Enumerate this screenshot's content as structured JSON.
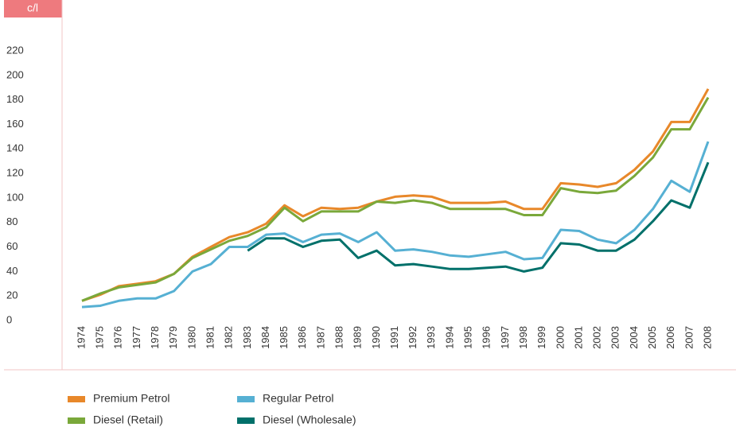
{
  "chart_data": {
    "type": "line",
    "y_label": "c/l",
    "categories": [
      "1974",
      "1975",
      "1976",
      "1977",
      "1978",
      "1979",
      "1980",
      "1981",
      "1982",
      "1983",
      "1984",
      "1985",
      "1986",
      "1987",
      "1988",
      "1989",
      "1990",
      "1991",
      "1992",
      "1993",
      "1994",
      "1995",
      "1996",
      "1997",
      "1998",
      "1999",
      "2000",
      "2001",
      "2002",
      "2003",
      "2004",
      "2005",
      "2006",
      "2007",
      "2008"
    ],
    "series": [
      {
        "name": "Premium Petrol",
        "color": "#e8882a",
        "values": [
          16,
          21,
          28,
          30,
          32,
          38,
          52,
          60,
          68,
          72,
          79,
          94,
          85,
          92,
          91,
          92,
          97,
          101,
          102,
          101,
          96,
          96,
          96,
          97,
          91,
          91,
          112,
          111,
          109,
          112,
          123,
          138,
          162,
          162,
          189
        ]
      },
      {
        "name": "Regular Petrol",
        "color": "#56b0d3",
        "values": [
          11,
          12,
          16,
          18,
          18,
          24,
          40,
          46,
          60,
          60,
          70,
          71,
          64,
          70,
          71,
          64,
          72,
          57,
          58,
          56,
          53,
          52,
          54,
          56,
          50,
          51,
          74,
          73,
          66,
          63,
          74,
          91,
          114,
          105,
          146
        ]
      },
      {
        "name": "Diesel (Retail)",
        "color": "#7aa83a",
        "values": [
          16,
          22,
          27,
          29,
          31,
          38,
          51,
          58,
          65,
          69,
          76,
          92,
          81,
          89,
          89,
          89,
          97,
          96,
          98,
          96,
          91,
          91,
          91,
          91,
          86,
          86,
          108,
          105,
          104,
          106,
          118,
          133,
          156,
          156,
          182
        ]
      },
      {
        "name": "Diesel (Wholesale)",
        "color": "#00706a",
        "values": [
          null,
          null,
          null,
          null,
          null,
          null,
          null,
          null,
          null,
          57,
          67,
          67,
          60,
          65,
          66,
          51,
          57,
          45,
          46,
          44,
          42,
          42,
          43,
          44,
          40,
          43,
          63,
          62,
          57,
          57,
          66,
          81,
          98,
          92,
          129
        ]
      }
    ],
    "ylim": [
      0,
      220
    ],
    "yticks": [
      0,
      20,
      40,
      60,
      80,
      100,
      120,
      140,
      160,
      180,
      200,
      220
    ]
  }
}
